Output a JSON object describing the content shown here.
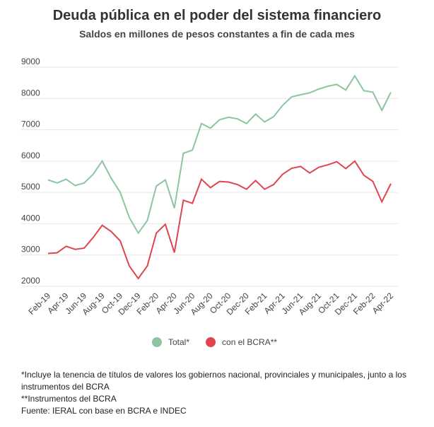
{
  "chart_data": {
    "type": "line",
    "title": "Deuda pública en el poder del sistema financiero",
    "subtitle": "Saldos en millones de pesos constantes a fin de cada mes",
    "categories": [
      "Feb-19",
      null,
      "Apr-19",
      null,
      "Jun-19",
      null,
      "Aug-19",
      null,
      "Oct-19",
      null,
      "Dec-19",
      null,
      "Feb-20",
      null,
      "Apr-20",
      null,
      "Jun-20",
      null,
      "Aug-20",
      null,
      "Oct-20",
      null,
      "Dec-20",
      null,
      "Feb-21",
      null,
      "Apr-21",
      null,
      "Jun-21",
      null,
      "Aug-21",
      null,
      "Oct-21",
      null,
      "Dec-21",
      null,
      "Feb-22",
      null,
      "Apr-22"
    ],
    "series": [
      {
        "name": "Total*",
        "color": "#8cc5a0",
        "values": [
          5400,
          5300,
          5420,
          5220,
          5300,
          5580,
          6000,
          5450,
          5000,
          4200,
          3700,
          4100,
          5200,
          5400,
          4500,
          6250,
          6350,
          7200,
          7050,
          7320,
          7400,
          7350,
          7200,
          7500,
          7250,
          7420,
          7780,
          8050,
          8120,
          8180,
          8300,
          8390,
          8450,
          8270,
          8720,
          8250,
          8200,
          7620,
          8200
        ]
      },
      {
        "name": "con el BCRA**",
        "color": "#e0444e",
        "values": [
          3050,
          3070,
          3280,
          3180,
          3220,
          3560,
          3950,
          3750,
          3450,
          2650,
          2250,
          2650,
          3700,
          3980,
          3080,
          4750,
          4650,
          5420,
          5150,
          5350,
          5330,
          5250,
          5100,
          5380,
          5100,
          5250,
          5580,
          5770,
          5830,
          5620,
          5800,
          5880,
          5980,
          5760,
          6000,
          5550,
          5350,
          4700,
          5280
        ]
      }
    ],
    "ylim": [
      2000,
      9000
    ],
    "yticks": [
      2000,
      3000,
      4000,
      5000,
      6000,
      7000,
      8000,
      9000
    ],
    "grid": true,
    "legend": "bottom",
    "notes": [
      "*Incluye la tenencia de títulos de valores los gobiernos nacional, provinciales y municipales, junto a los",
      "instrumentos del BCRA",
      "**Instrumentos del BCRA",
      "Fuente: IERAL con base en BCRA e INDEC"
    ]
  }
}
